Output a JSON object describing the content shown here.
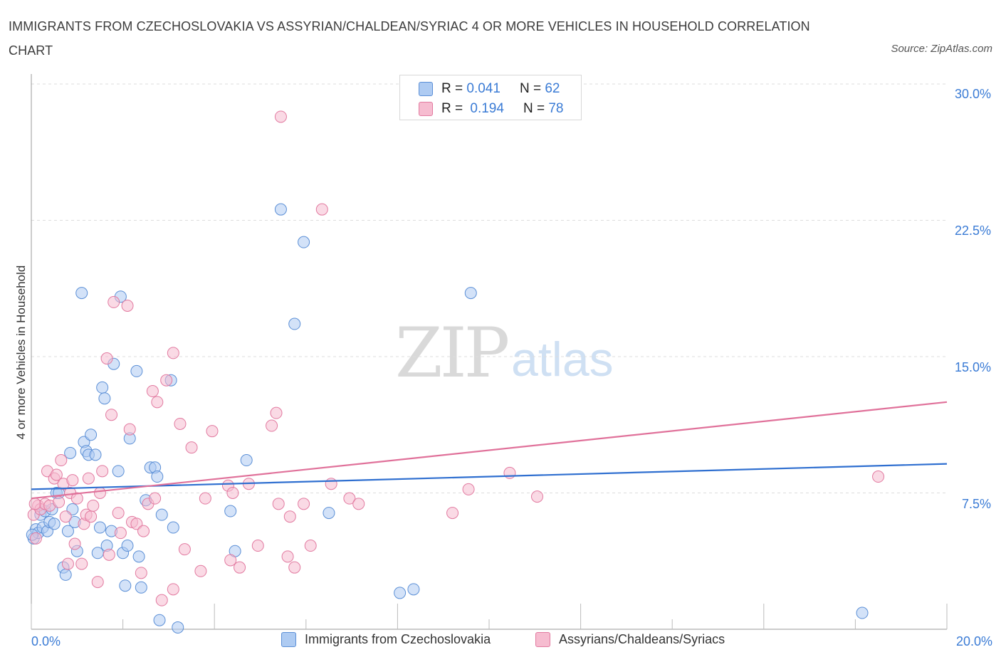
{
  "title": "IMMIGRANTS FROM CZECHOSLOVAKIA VS ASSYRIAN/CHALDEAN/SYRIAC 4 OR MORE VEHICLES IN HOUSEHOLD CORRELATION CHART",
  "source": "Source: ZipAtlas.com",
  "watermark": {
    "zip": "ZIP",
    "atlas": "atlas"
  },
  "legend": {
    "rows": [
      {
        "r_label": "R =",
        "r_value": "0.041",
        "n_label": "N =",
        "n_value": "62"
      },
      {
        "r_label": "R =",
        "r_value": "0.194",
        "n_label": "N =",
        "n_value": "78"
      }
    ]
  },
  "colors": {
    "blue_fill": "#aecbf2",
    "blue_stroke": "#5b8fd6",
    "blue_line": "#2f6fd0",
    "pink_fill": "#f6bcd0",
    "pink_stroke": "#e27aa0",
    "pink_line": "#e0719a",
    "tick_text": "#3a7bd5",
    "grid": "#dddddd"
  },
  "chart_data": {
    "type": "scatter",
    "title": "IMMIGRANTS FROM CZECHOSLOVAKIA VS ASSYRIAN/CHALDEAN/SYRIAC 4 OR MORE VEHICLES IN HOUSEHOLD CORRELATION CHART",
    "xlabel": "",
    "ylabel": "4 or more Vehicles in Household",
    "xlim": [
      0,
      20
    ],
    "ylim": [
      0,
      30
    ],
    "x_ticks": [
      "0.0%",
      "20.0%"
    ],
    "y_ticks": [
      "7.5%",
      "15.0%",
      "22.5%",
      "30.0%"
    ],
    "y_tick_values": [
      7.5,
      15.0,
      22.5,
      30.0
    ],
    "legend_position": "top-center",
    "series": [
      {
        "name": "Immigrants from Czechoslovakia",
        "color": "#5b8fd6",
        "R": 0.041,
        "N": 62,
        "trend": [
          [
            0,
            7.7
          ],
          [
            20,
            9.1
          ]
        ],
        "points": [
          [
            0.05,
            5.0
          ],
          [
            0.1,
            5.5
          ],
          [
            0.15,
            5.3
          ],
          [
            0.2,
            6.3
          ],
          [
            0.25,
            5.6
          ],
          [
            0.3,
            6.5
          ],
          [
            0.35,
            5.4
          ],
          [
            0.4,
            5.9
          ],
          [
            0.45,
            6.6
          ],
          [
            0.5,
            5.8
          ],
          [
            0.55,
            7.5
          ],
          [
            0.6,
            7.5
          ],
          [
            0.7,
            3.4
          ],
          [
            0.75,
            3.0
          ],
          [
            0.8,
            5.4
          ],
          [
            0.85,
            9.7
          ],
          [
            0.9,
            6.6
          ],
          [
            0.95,
            5.9
          ],
          [
            1.0,
            4.3
          ],
          [
            1.1,
            18.5
          ],
          [
            1.15,
            10.3
          ],
          [
            1.2,
            9.8
          ],
          [
            1.25,
            9.6
          ],
          [
            1.3,
            10.7
          ],
          [
            1.4,
            9.6
          ],
          [
            1.45,
            4.2
          ],
          [
            1.5,
            5.6
          ],
          [
            1.55,
            13.3
          ],
          [
            1.6,
            12.7
          ],
          [
            1.65,
            4.6
          ],
          [
            1.75,
            5.4
          ],
          [
            1.8,
            14.6
          ],
          [
            1.9,
            8.7
          ],
          [
            1.95,
            18.3
          ],
          [
            2.0,
            4.2
          ],
          [
            2.05,
            2.4
          ],
          [
            2.1,
            4.6
          ],
          [
            2.15,
            10.5
          ],
          [
            2.3,
            14.2
          ],
          [
            2.35,
            4.0
          ],
          [
            2.4,
            2.3
          ],
          [
            2.5,
            7.1
          ],
          [
            2.6,
            8.9
          ],
          [
            2.7,
            8.9
          ],
          [
            2.75,
            8.4
          ],
          [
            2.8,
            0.5
          ],
          [
            2.85,
            6.3
          ],
          [
            3.05,
            13.7
          ],
          [
            3.1,
            5.6
          ],
          [
            3.2,
            0.1
          ],
          [
            4.35,
            6.5
          ],
          [
            4.45,
            4.3
          ],
          [
            4.7,
            9.3
          ],
          [
            5.45,
            23.1
          ],
          [
            5.75,
            16.8
          ],
          [
            5.95,
            21.3
          ],
          [
            6.5,
            6.4
          ],
          [
            8.05,
            2.0
          ],
          [
            8.35,
            2.2
          ],
          [
            9.6,
            18.5
          ],
          [
            18.15,
            0.9
          ],
          [
            0.02,
            5.2
          ]
        ]
      },
      {
        "name": "Assyrians/Chaldeans/Syriacs",
        "color": "#e27aa0",
        "R": 0.194,
        "N": 78,
        "trend": [
          [
            0,
            7.2
          ],
          [
            20,
            12.5
          ]
        ],
        "points": [
          [
            0.05,
            6.3
          ],
          [
            0.1,
            5.0
          ],
          [
            0.15,
            6.8
          ],
          [
            0.2,
            6.6
          ],
          [
            0.3,
            6.9
          ],
          [
            0.35,
            8.7
          ],
          [
            0.4,
            6.8
          ],
          [
            0.5,
            8.3
          ],
          [
            0.55,
            8.5
          ],
          [
            0.6,
            7.0
          ],
          [
            0.65,
            9.3
          ],
          [
            0.7,
            8.0
          ],
          [
            0.75,
            6.2
          ],
          [
            0.8,
            3.6
          ],
          [
            0.85,
            7.5
          ],
          [
            0.9,
            8.2
          ],
          [
            0.95,
            4.7
          ],
          [
            1.0,
            7.2
          ],
          [
            1.1,
            3.6
          ],
          [
            1.15,
            5.8
          ],
          [
            1.2,
            6.3
          ],
          [
            1.25,
            8.3
          ],
          [
            1.3,
            6.2
          ],
          [
            1.35,
            6.8
          ],
          [
            1.45,
            2.6
          ],
          [
            1.5,
            7.5
          ],
          [
            1.55,
            8.7
          ],
          [
            1.65,
            14.9
          ],
          [
            1.7,
            4.1
          ],
          [
            1.75,
            11.8
          ],
          [
            1.8,
            18.0
          ],
          [
            1.9,
            6.4
          ],
          [
            1.95,
            5.3
          ],
          [
            2.1,
            17.8
          ],
          [
            2.15,
            11.0
          ],
          [
            2.2,
            5.9
          ],
          [
            2.3,
            5.8
          ],
          [
            2.4,
            3.1
          ],
          [
            2.45,
            5.4
          ],
          [
            2.55,
            6.9
          ],
          [
            2.65,
            13.1
          ],
          [
            2.7,
            7.2
          ],
          [
            2.75,
            12.5
          ],
          [
            2.85,
            1.6
          ],
          [
            2.95,
            13.7
          ],
          [
            3.1,
            15.2
          ],
          [
            3.1,
            2.2
          ],
          [
            3.25,
            11.3
          ],
          [
            3.35,
            4.4
          ],
          [
            3.5,
            10.0
          ],
          [
            3.7,
            3.2
          ],
          [
            3.8,
            7.2
          ],
          [
            3.95,
            10.9
          ],
          [
            4.3,
            7.9
          ],
          [
            4.35,
            3.8
          ],
          [
            4.4,
            7.5
          ],
          [
            4.55,
            3.4
          ],
          [
            4.75,
            8.0
          ],
          [
            4.95,
            4.6
          ],
          [
            5.25,
            11.2
          ],
          [
            5.35,
            11.9
          ],
          [
            5.4,
            6.9
          ],
          [
            5.45,
            28.2
          ],
          [
            5.6,
            4.0
          ],
          [
            5.65,
            6.2
          ],
          [
            5.75,
            3.4
          ],
          [
            5.95,
            6.9
          ],
          [
            6.1,
            4.6
          ],
          [
            6.35,
            23.1
          ],
          [
            6.55,
            8.0
          ],
          [
            6.95,
            7.2
          ],
          [
            7.15,
            6.9
          ],
          [
            9.2,
            6.4
          ],
          [
            9.55,
            7.7
          ],
          [
            10.45,
            8.6
          ],
          [
            11.05,
            7.3
          ],
          [
            18.5,
            8.4
          ],
          [
            0.08,
            6.9
          ]
        ]
      }
    ]
  }
}
